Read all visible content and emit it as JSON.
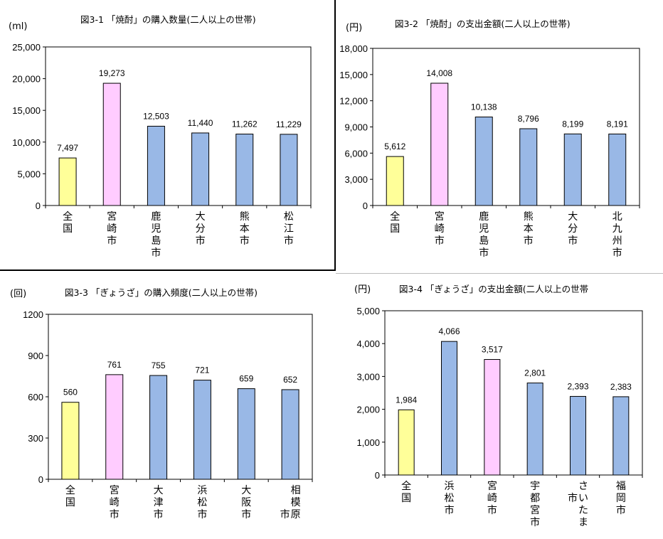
{
  "chart_data": [
    {
      "type": "bar",
      "title": "図3-1 「焼酎」の購入数量(二人以上の世帯)",
      "unit_label": "(ml)",
      "categories": [
        "全国",
        "宮崎市",
        "鹿児島市",
        "大分市",
        "熊本市",
        "松江市"
      ],
      "values": [
        7497,
        19273,
        12503,
        11440,
        11262,
        11229
      ],
      "data_labels": [
        "7,497",
        "19,273",
        "12,503",
        "11,440",
        "11,262",
        "11,229"
      ],
      "bar_colors": [
        "#ffff99",
        "#ffccff",
        "#99b8e6",
        "#99b8e6",
        "#99b8e6",
        "#99b8e6"
      ],
      "ylim": [
        0,
        25000
      ],
      "yticks": [
        0,
        5000,
        10000,
        15000,
        20000,
        25000
      ],
      "ytick_labels": [
        "0",
        "5,000",
        "10,000",
        "15,000",
        "20,000",
        "25,000"
      ],
      "grid": false
    },
    {
      "type": "bar",
      "title": "図3-2 「焼酎」の支出金額(二人以上の世帯)",
      "unit_label": "(円)",
      "categories": [
        "全国",
        "宮崎市",
        "鹿児島市",
        "熊本市",
        "大分市",
        "北九州市"
      ],
      "values": [
        5612,
        14008,
        10138,
        8796,
        8199,
        8191
      ],
      "data_labels": [
        "5,612",
        "14,008",
        "10,138",
        "8,796",
        "8,199",
        "8,191"
      ],
      "bar_colors": [
        "#ffff99",
        "#ffccff",
        "#99b8e6",
        "#99b8e6",
        "#99b8e6",
        "#99b8e6"
      ],
      "ylim": [
        0,
        18000
      ],
      "yticks": [
        0,
        3000,
        6000,
        9000,
        12000,
        15000,
        18000
      ],
      "ytick_labels": [
        "0",
        "3,000",
        "6,000",
        "9,000",
        "12,000",
        "15,000",
        "18,000"
      ],
      "grid": false
    },
    {
      "type": "bar",
      "title": "図3-3 「ぎょうざ」の購入頻度(二人以上の世帯)",
      "unit_label": "(回)",
      "categories": [
        "全国",
        "宮崎市",
        "大津市",
        "浜松市",
        "大阪市",
        "相模原市"
      ],
      "values": [
        560,
        761,
        755,
        721,
        659,
        652
      ],
      "data_labels": [
        "560",
        "761",
        "755",
        "721",
        "659",
        "652"
      ],
      "bar_colors": [
        "#ffff99",
        "#ffccff",
        "#99b8e6",
        "#99b8e6",
        "#99b8e6",
        "#99b8e6"
      ],
      "ylim": [
        0,
        1200
      ],
      "yticks": [
        0,
        300,
        600,
        900,
        1200
      ],
      "ytick_labels": [
        "0",
        "300",
        "600",
        "900",
        "1200"
      ],
      "grid": false
    },
    {
      "type": "bar",
      "title": "図3-4 「ぎょうざ」の支出金額(二人以上の世帯",
      "unit_label": "(円)",
      "categories": [
        "全国",
        "浜松市",
        "宮崎市",
        "宇都宮市",
        "さいたま市",
        "福岡市"
      ],
      "values": [
        1984,
        4066,
        3517,
        2801,
        2393,
        2383
      ],
      "data_labels": [
        "1,984",
        "4,066",
        "3,517",
        "2,801",
        "2,393",
        "2,383"
      ],
      "bar_colors": [
        "#ffff99",
        "#99b8e6",
        "#ffccff",
        "#99b8e6",
        "#99b8e6",
        "#99b8e6"
      ],
      "ylim": [
        0,
        5000
      ],
      "yticks": [
        0,
        1000,
        2000,
        3000,
        4000,
        5000
      ],
      "ytick_labels": [
        "0",
        "1,000",
        "2,000",
        "3,000",
        "4,000",
        "5,000"
      ],
      "grid": false
    }
  ]
}
